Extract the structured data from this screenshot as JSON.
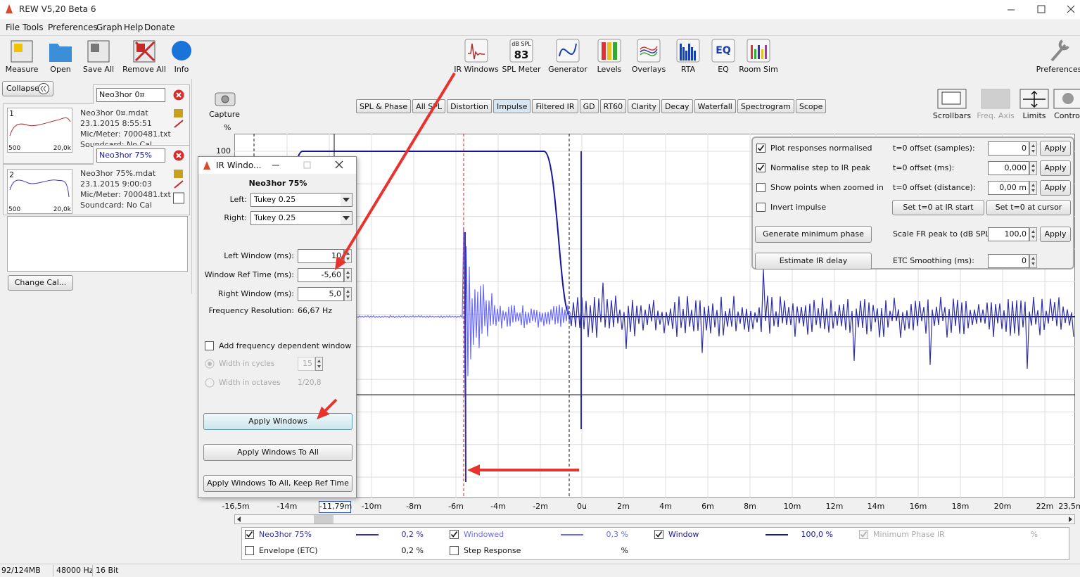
{
  "title_bar": {
    "title": "REW V5,20 Beta 6"
  },
  "menu": [
    "File",
    "Tools",
    "Preferences",
    "Graph",
    "Help",
    "Donate"
  ],
  "toolbar": {
    "left": [
      "Measure",
      "Open",
      "Save All",
      "Remove All",
      "Info"
    ],
    "center": [
      "IR Windows",
      "SPL Meter",
      "Generator",
      "Levels",
      "Overlays",
      "RTA",
      "EQ",
      "Room Sim"
    ],
    "spl_meter_icon": {
      "unit": "dB SPL",
      "reading": "83"
    },
    "eq_icon": "EQ",
    "right": [
      "Preferences"
    ]
  },
  "measurements_panel": {
    "collapse": "Collapse",
    "items": [
      {
        "index": "1",
        "name_field": "Neo3hor 0¤",
        "file": "Neo3hor 0¤.mdat",
        "date": "23.1.2015 8:55:51",
        "mic": "Mic/Meter: 7000481.txt",
        "soundcard": "Soundcard: No Cal",
        "axis_min": "500",
        "axis_max": "20,0k"
      },
      {
        "index": "2",
        "name_field": "Neo3hor 75%",
        "file": "Neo3hor 75%.mdat",
        "date": "23.1.2015 9:00:03",
        "mic": "Mic/Meter: 7000481.txt",
        "soundcard": "Soundcard: No Cal",
        "axis_min": "500",
        "axis_max": "20,0k"
      }
    ],
    "change_cal": "Change Cal..."
  },
  "capture": "Capture",
  "tabs": [
    "SPL & Phase",
    "All SPL",
    "Distortion",
    "Impulse",
    "Filtered IR",
    "GD",
    "RT60",
    "Clarity",
    "Decay",
    "Waterfall",
    "Spectrogram",
    "Scope"
  ],
  "view_buttons": [
    "Scrollbars",
    "Freq. Axis",
    "Limits",
    "Control"
  ],
  "graph": {
    "y_unit": "%",
    "y_tick": "100",
    "x_ticks": [
      "-16,5m",
      "-14m",
      "-10m",
      "-8m",
      "-6m",
      "-4m",
      "-2m",
      "0u",
      "2m",
      "4m",
      "6m",
      "8m",
      "10m",
      "12m",
      "14m",
      "16m",
      "18m",
      "20m",
      "22m",
      "23,5m"
    ],
    "cursor_x": "-11,79m"
  },
  "control_panel": {
    "checkboxes": [
      {
        "label": "Plot responses normalised",
        "checked": true
      },
      {
        "label": "Normalise step to IR peak",
        "checked": true
      },
      {
        "label": "Show points when zoomed in",
        "checked": false
      },
      {
        "label": "Invert impulse",
        "checked": false
      }
    ],
    "offsets": [
      {
        "label": "t=0 offset (samples):",
        "value": "0",
        "button": "Apply"
      },
      {
        "label": "t=0 offset (ms):",
        "value": "0,000",
        "button": "Apply"
      },
      {
        "label": "t=0 offset (distance):",
        "value": "0,00 m",
        "button": "Apply"
      }
    ],
    "set_buttons": [
      "Set t=0 at IR start",
      "Set t=0 at cursor"
    ],
    "generate_button": "Generate minimum phase",
    "scale": {
      "label": "Scale FR peak to (dB SPL):",
      "value": "100,0",
      "button": "Apply"
    },
    "estimate_button": "Estimate IR delay",
    "smoothing": {
      "label": "ETC Smoothing (ms):",
      "value": "0"
    }
  },
  "ir_window_dialog": {
    "title": "IR Windo...",
    "measurement": "Neo3hor 75%",
    "window_types": [
      {
        "label": "Left:",
        "value": "Tukey 0.25"
      },
      {
        "label": "Right:",
        "value": "Tukey 0.25"
      }
    ],
    "window_fields": [
      {
        "label": "Left Window (ms):",
        "value": "10"
      },
      {
        "label": "Window Ref Time (ms):",
        "value": "-5,60"
      },
      {
        "label": "Right Window (ms):",
        "value": "5,0"
      }
    ],
    "frequency_resolution": {
      "label": "Frequency Resolution:",
      "value": "66,67 Hz"
    },
    "frequency_dependent": {
      "label": "Add frequency dependent window",
      "checked": false
    },
    "width_options": [
      {
        "label": "Width in cycles",
        "value": "15"
      },
      {
        "label": "Width in octaves",
        "value": "1/20,8"
      }
    ],
    "buttons": [
      "Apply Windows",
      "Apply Windows To All",
      "Apply Windows To All, Keep Ref Time"
    ]
  },
  "legend": [
    {
      "name": "Neo3hor 75%",
      "value": "0,2 %",
      "checked": true,
      "color": "#2e2ea6"
    },
    {
      "name": "Windowed",
      "value": "0,3 %",
      "checked": true,
      "color": "#6b6bf0"
    },
    {
      "name": "Window",
      "value": "100,0 %",
      "checked": true,
      "color": "#16169c"
    },
    {
      "name": "Minimum Phase IR",
      "value": "%",
      "checked": true,
      "disabled": true
    },
    {
      "name": "Envelope (ETC)",
      "value": "0,2 %",
      "checked": false
    },
    {
      "name": "Step Response",
      "value": "%",
      "checked": false
    }
  ],
  "status_bar": [
    "92/124MB",
    "48000 Hz",
    "16 Bit"
  ]
}
